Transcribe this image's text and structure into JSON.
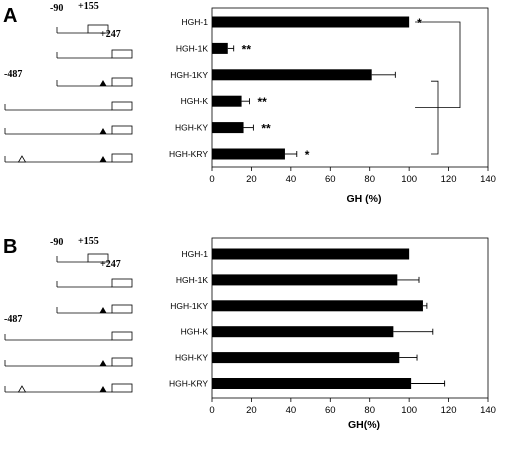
{
  "chart_data": [
    {
      "panel": "A",
      "type": "bar",
      "orientation": "horizontal",
      "categories": [
        "HGH-1",
        "HGH-1K",
        "HGH-1KY",
        "HGH-K",
        "HGH-KY",
        "HGH-KRY"
      ],
      "values": [
        100,
        8,
        81,
        15,
        16,
        37
      ],
      "errors": [
        0,
        3,
        12,
        4,
        5,
        6
      ],
      "significance": [
        "*",
        "**",
        "",
        "**",
        "**",
        "*"
      ],
      "brackets": [
        {
          "from": "HGH-1",
          "to": "HGH-KY"
        },
        {
          "from": "HGH-K",
          "to": "HGH-KRY"
        }
      ],
      "xlabel": "GH (%)",
      "xlim": [
        0,
        140
      ],
      "xticks": [
        0,
        20,
        40,
        60,
        80,
        100,
        120,
        140
      ],
      "construct_labels": [
        "-90",
        "+155",
        "+247",
        "-487"
      ]
    },
    {
      "panel": "B",
      "type": "bar",
      "orientation": "horizontal",
      "categories": [
        "HGH-1",
        "HGH-1K",
        "HGH-1KY",
        "HGH-K",
        "HGH-KY",
        "HGH-KRY"
      ],
      "values": [
        100,
        94,
        107,
        92,
        95,
        101
      ],
      "errors": [
        0,
        11,
        2,
        20,
        9,
        17
      ],
      "xlabel": "GH(%)",
      "xlim": [
        0,
        140
      ],
      "xticks": [
        0,
        20,
        40,
        60,
        80,
        100,
        120,
        140
      ],
      "construct_labels": [
        "-90",
        "+155",
        "+247",
        "-487"
      ]
    }
  ]
}
